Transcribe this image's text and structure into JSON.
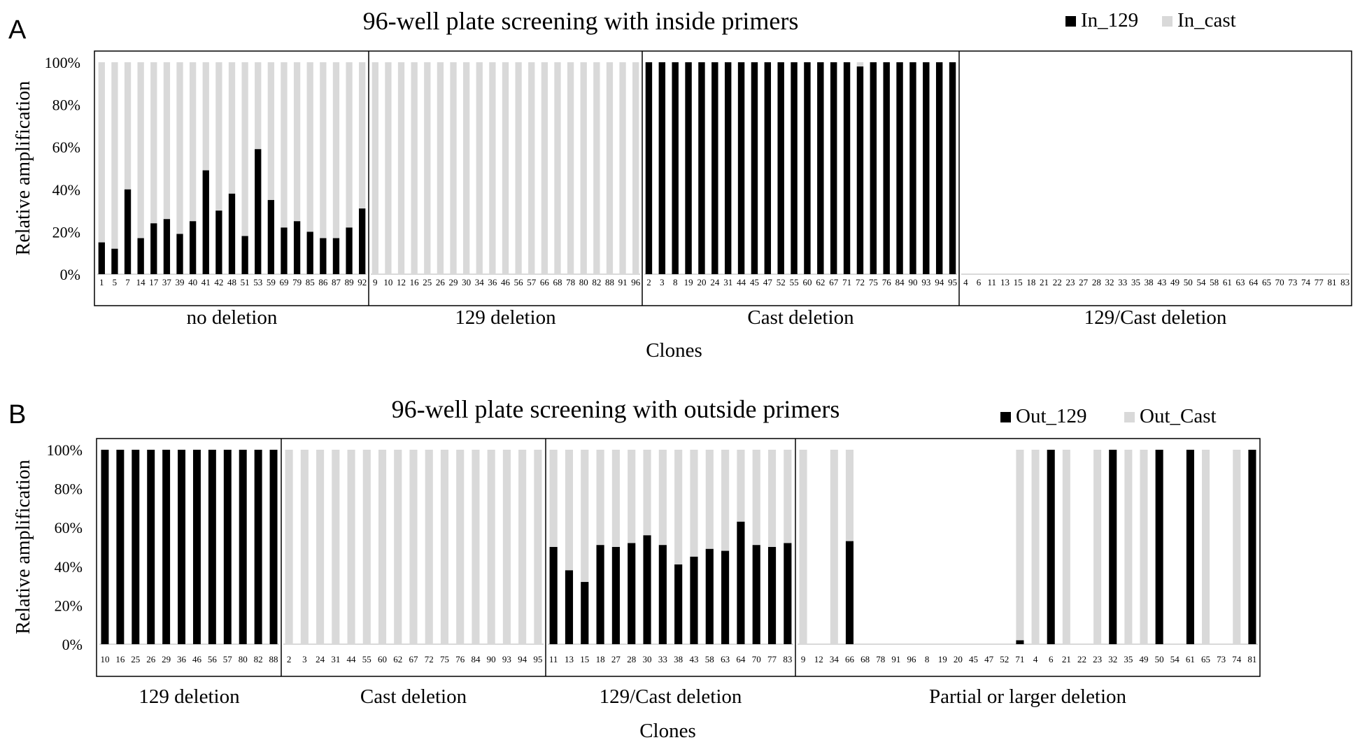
{
  "chart_data": [
    {
      "type": "bar",
      "stacked": true,
      "panel_label": "A",
      "title": "96-well plate screening with inside primers",
      "xlabel": "Clones",
      "ylabel": "Relative amplification",
      "ylim": [
        0,
        100
      ],
      "yticks": [
        "0%",
        "20%",
        "40%",
        "60%",
        "80%",
        "100%"
      ],
      "legend": [
        "In_129",
        "In_cast"
      ],
      "legend_position": "top-right",
      "colors": {
        "series1": "#000000",
        "series2": "#d9d9d9"
      },
      "groups": [
        {
          "label": "no deletion",
          "categories": [
            "1",
            "5",
            "7",
            "14",
            "17",
            "37",
            "39",
            "40",
            "41",
            "42",
            "48",
            "51",
            "53",
            "59",
            "69",
            "79",
            "85",
            "86",
            "87",
            "89",
            "92"
          ],
          "series": [
            {
              "name": "In_129",
              "values": [
                15,
                12,
                40,
                17,
                24,
                26,
                19,
                25,
                49,
                30,
                38,
                18,
                59,
                35,
                22,
                25,
                20,
                17,
                17,
                22,
                31
              ]
            },
            {
              "name": "In_cast",
              "values": [
                85,
                88,
                60,
                83,
                76,
                74,
                81,
                75,
                51,
                70,
                62,
                82,
                41,
                65,
                78,
                75,
                80,
                83,
                83,
                78,
                69
              ]
            }
          ]
        },
        {
          "label": "129 deletion",
          "categories": [
            "9",
            "10",
            "12",
            "16",
            "25",
            "26",
            "29",
            "30",
            "34",
            "36",
            "46",
            "56",
            "57",
            "66",
            "68",
            "78",
            "80",
            "82",
            "88",
            "91",
            "96"
          ],
          "series": [
            {
              "name": "In_129",
              "values": [
                0,
                0,
                0,
                0,
                0,
                0,
                0,
                0,
                0,
                0,
                0,
                0,
                0,
                0,
                0,
                0,
                0,
                0,
                0,
                0,
                0
              ]
            },
            {
              "name": "In_cast",
              "values": [
                100,
                100,
                100,
                100,
                100,
                100,
                100,
                100,
                100,
                100,
                100,
                100,
                100,
                100,
                100,
                100,
                100,
                100,
                100,
                100,
                100
              ]
            }
          ]
        },
        {
          "label": "Cast deletion",
          "categories": [
            "2",
            "3",
            "8",
            "19",
            "20",
            "24",
            "31",
            "44",
            "45",
            "47",
            "52",
            "55",
            "60",
            "62",
            "67",
            "71",
            "72",
            "75",
            "76",
            "84",
            "90",
            "93",
            "94",
            "95"
          ],
          "series": [
            {
              "name": "In_129",
              "values": [
                100,
                100,
                100,
                100,
                100,
                100,
                100,
                100,
                100,
                100,
                100,
                100,
                100,
                100,
                100,
                100,
                98,
                100,
                100,
                100,
                100,
                100,
                100,
                100
              ]
            },
            {
              "name": "In_cast",
              "values": [
                0,
                0,
                0,
                0,
                0,
                0,
                0,
                0,
                0,
                0,
                0,
                0,
                0,
                0,
                0,
                0,
                2,
                0,
                0,
                0,
                0,
                0,
                0,
                0
              ]
            }
          ]
        },
        {
          "label": "129/Cast deletion",
          "categories": [
            "4",
            "6",
            "11",
            "13",
            "15",
            "18",
            "21",
            "22",
            "23",
            "27",
            "28",
            "32",
            "33",
            "35",
            "38",
            "43",
            "49",
            "50",
            "54",
            "58",
            "61",
            "63",
            "64",
            "65",
            "70",
            "73",
            "74",
            "77",
            "81",
            "83"
          ],
          "series": [
            {
              "name": "In_129",
              "values": [
                0,
                0,
                0,
                0,
                0,
                0,
                0,
                0,
                0,
                0,
                0,
                0,
                0,
                0,
                0,
                0,
                0,
                0,
                0,
                0,
                0,
                0,
                0,
                0,
                0,
                0,
                0,
                0,
                0,
                0
              ]
            },
            {
              "name": "In_cast",
              "values": [
                0,
                0,
                0,
                0,
                0,
                0,
                0,
                0,
                0,
                0,
                0,
                0,
                0,
                0,
                0,
                0,
                0,
                0,
                0,
                0,
                0,
                0,
                0,
                0,
                0,
                0,
                0,
                0,
                0,
                0
              ]
            }
          ]
        }
      ]
    },
    {
      "type": "bar",
      "stacked": true,
      "panel_label": "B",
      "title": "96-well plate screening with outside primers",
      "xlabel": "Clones",
      "ylabel": "Relative amplification",
      "ylim": [
        0,
        100
      ],
      "yticks": [
        "0%",
        "20%",
        "40%",
        "60%",
        "80%",
        "100%"
      ],
      "legend": [
        "Out_129",
        "Out_Cast"
      ],
      "legend_position": "top-right",
      "colors": {
        "series1": "#000000",
        "series2": "#d9d9d9"
      },
      "groups": [
        {
          "label": "129 deletion",
          "categories": [
            "10",
            "16",
            "25",
            "26",
            "29",
            "36",
            "46",
            "56",
            "57",
            "80",
            "82",
            "88"
          ],
          "series": [
            {
              "name": "Out_129",
              "values": [
                100,
                100,
                100,
                100,
                100,
                100,
                100,
                100,
                100,
                100,
                100,
                100
              ]
            },
            {
              "name": "Out_Cast",
              "values": [
                0,
                0,
                0,
                0,
                0,
                0,
                0,
                0,
                0,
                0,
                0,
                0
              ]
            }
          ]
        },
        {
          "label": "Cast deletion",
          "categories": [
            "2",
            "3",
            "24",
            "31",
            "44",
            "55",
            "60",
            "62",
            "67",
            "72",
            "75",
            "76",
            "84",
            "90",
            "93",
            "94",
            "95"
          ],
          "series": [
            {
              "name": "Out_129",
              "values": [
                0,
                0,
                0,
                0,
                0,
                0,
                0,
                0,
                0,
                0,
                0,
                0,
                0,
                0,
                0,
                0,
                0
              ]
            },
            {
              "name": "Out_Cast",
              "values": [
                100,
                100,
                100,
                100,
                100,
                100,
                100,
                100,
                100,
                100,
                100,
                100,
                100,
                100,
                100,
                100,
                100
              ]
            }
          ]
        },
        {
          "label": "129/Cast deletion",
          "categories": [
            "11",
            "13",
            "15",
            "18",
            "27",
            "28",
            "30",
            "33",
            "38",
            "43",
            "58",
            "63",
            "64",
            "70",
            "77",
            "83"
          ],
          "series": [
            {
              "name": "Out_129",
              "values": [
                50,
                38,
                32,
                51,
                50,
                52,
                56,
                51,
                41,
                45,
                49,
                48,
                63,
                51,
                50,
                52
              ]
            },
            {
              "name": "Out_Cast",
              "values": [
                50,
                62,
                68,
                49,
                50,
                48,
                44,
                49,
                59,
                55,
                51,
                52,
                37,
                49,
                50,
                48
              ]
            }
          ]
        },
        {
          "label": "Partial or larger deletion",
          "categories": [
            "9",
            "12",
            "34",
            "66",
            "68",
            "78",
            "91",
            "96",
            "8",
            "19",
            "20",
            "45",
            "47",
            "52",
            "71",
            "4",
            "6",
            "21",
            "22",
            "23",
            "32",
            "35",
            "49",
            "50",
            "54",
            "61",
            "65",
            "73",
            "74",
            "81"
          ],
          "series": [
            {
              "name": "Out_129",
              "values": [
                0,
                0,
                0,
                53,
                0,
                0,
                0,
                0,
                0,
                0,
                0,
                0,
                0,
                0,
                2,
                0,
                100,
                0,
                0,
                0,
                100,
                0,
                0,
                100,
                0,
                100,
                0,
                0,
                0,
                100
              ]
            },
            {
              "name": "Out_Cast",
              "values": [
                100,
                0,
                100,
                47,
                0,
                0,
                0,
                0,
                0,
                0,
                0,
                0,
                0,
                0,
                98,
                100,
                0,
                100,
                0,
                100,
                0,
                100,
                100,
                0,
                0,
                0,
                100,
                0,
                100,
                0
              ]
            }
          ]
        }
      ]
    }
  ]
}
